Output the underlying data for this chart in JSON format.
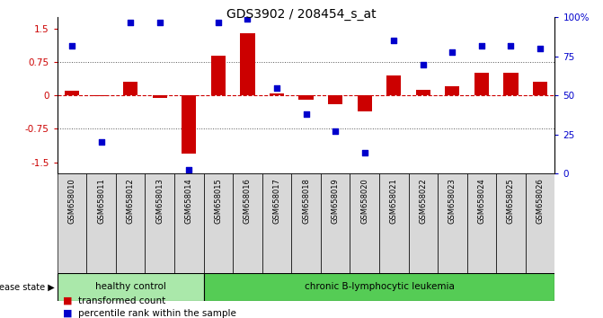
{
  "title": "GDS3902 / 208454_s_at",
  "samples": [
    "GSM658010",
    "GSM658011",
    "GSM658012",
    "GSM658013",
    "GSM658014",
    "GSM658015",
    "GSM658016",
    "GSM658017",
    "GSM658018",
    "GSM658019",
    "GSM658020",
    "GSM658021",
    "GSM658022",
    "GSM658023",
    "GSM658024",
    "GSM658025",
    "GSM658026"
  ],
  "transformed_count": [
    0.1,
    -0.02,
    0.3,
    -0.05,
    -1.3,
    0.9,
    1.4,
    0.05,
    -0.1,
    -0.2,
    -0.35,
    0.45,
    0.12,
    0.2,
    0.5,
    0.5,
    0.3
  ],
  "percentile_rank": [
    82,
    20,
    97,
    97,
    2,
    97,
    99,
    55,
    38,
    27,
    13,
    85,
    70,
    78,
    82,
    82,
    80
  ],
  "group_labels": [
    "healthy control",
    "chronic B-lymphocytic leukemia"
  ],
  "healthy_count": 5,
  "total_count": 17,
  "bar_color": "#cc0000",
  "dot_color": "#0000cc",
  "ylim_left": [
    -1.75,
    1.75
  ],
  "ylim_right": [
    0,
    100
  ],
  "yticks_left": [
    -1.5,
    -0.75,
    0,
    0.75,
    1.5
  ],
  "yticks_right": [
    0,
    25,
    50,
    75,
    100
  ],
  "ytick_labels_right": [
    "0",
    "25",
    "50",
    "75",
    "100%"
  ],
  "dotted_hlines": [
    0.75,
    -0.75
  ],
  "dashed_hline": 0.0,
  "background_color": "#ffffff",
  "gray_box_color": "#d8d8d8",
  "healthy_color": "#aae8aa",
  "leukemia_color": "#55cc55"
}
